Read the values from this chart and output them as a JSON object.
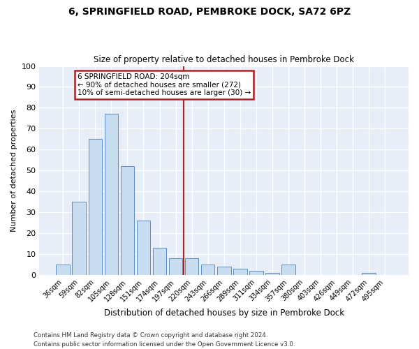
{
  "title1": "6, SPRINGFIELD ROAD, PEMBROKE DOCK, SA72 6PZ",
  "title2": "Size of property relative to detached houses in Pembroke Dock",
  "xlabel": "Distribution of detached houses by size in Pembroke Dock",
  "ylabel": "Number of detached properties",
  "categories": [
    "36sqm",
    "59sqm",
    "82sqm",
    "105sqm",
    "128sqm",
    "151sqm",
    "174sqm",
    "197sqm",
    "220sqm",
    "243sqm",
    "266sqm",
    "289sqm",
    "311sqm",
    "334sqm",
    "357sqm",
    "380sqm",
    "403sqm",
    "426sqm",
    "449sqm",
    "472sqm",
    "495sqm"
  ],
  "values": [
    5,
    35,
    65,
    77,
    52,
    26,
    13,
    8,
    8,
    5,
    4,
    3,
    2,
    1,
    5,
    0,
    0,
    0,
    0,
    1,
    0
  ],
  "bar_color": "#c9ddf0",
  "bar_edge_color": "#5b8ec4",
  "vline_x_index": 7,
  "vline_color": "#aa2222",
  "annotation_text": "6 SPRINGFIELD ROAD: 204sqm\n← 90% of detached houses are smaller (272)\n10% of semi-detached houses are larger (30) →",
  "annotation_box_color": "#aa2222",
  "ylim": [
    0,
    100
  ],
  "yticks": [
    0,
    10,
    20,
    30,
    40,
    50,
    60,
    70,
    80,
    90,
    100
  ],
  "background_color": "#e8eef8",
  "grid_color": "#ffffff",
  "footnote1": "Contains HM Land Registry data © Crown copyright and database right 2024.",
  "footnote2": "Contains public sector information licensed under the Open Government Licence v3.0."
}
